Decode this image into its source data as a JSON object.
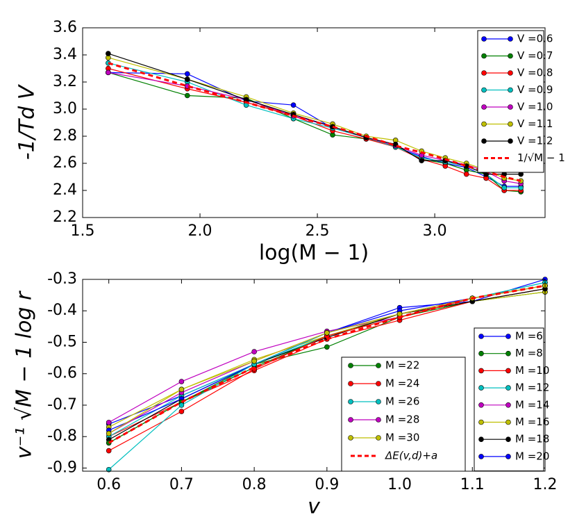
{
  "chart_data": [
    {
      "type": "line",
      "xlabel": "log(M − 1)",
      "ylabel": "-1/Td V",
      "x": [
        1.609,
        1.946,
        2.197,
        2.398,
        2.565,
        2.708,
        2.833,
        2.944,
        3.045,
        3.135,
        3.219,
        3.296,
        3.367
      ],
      "xlim": [
        1.5,
        3.47
      ],
      "ylim": [
        2.2,
        3.6
      ],
      "xticks": [
        1.5,
        {
          "value": 2,
          "label": "2.0"
        },
        2.5,
        {
          "value": 3,
          "label": "3.0"
        }
      ],
      "yticks": [
        2.2,
        2.4,
        2.6,
        2.8,
        {
          "value": 3,
          "label": "3.0"
        },
        3.2,
        3.4,
        3.6
      ],
      "legend": "upper right",
      "series": [
        {
          "name": "V =0.6",
          "color": "#0000ff",
          "marker": true,
          "values": [
            3.27,
            3.26,
            3.06,
            3.03,
            2.86,
            2.79,
            2.72,
            2.65,
            2.6,
            2.57,
            2.5,
            2.43,
            2.43
          ]
        },
        {
          "name": "V =0.7",
          "color": "#008000",
          "marker": true,
          "values": [
            3.27,
            3.1,
            3.08,
            2.93,
            2.81,
            2.78,
            2.73,
            2.63,
            2.6,
            2.55,
            2.52,
            2.4,
            2.39
          ]
        },
        {
          "name": "V =0.8",
          "color": "#ff0000",
          "marker": true,
          "values": [
            3.3,
            3.15,
            3.05,
            2.95,
            2.84,
            2.78,
            2.72,
            2.63,
            2.58,
            2.52,
            2.49,
            2.4,
            2.4
          ]
        },
        {
          "name": "V =0.9",
          "color": "#00bfbf",
          "marker": true,
          "values": [
            3.34,
            3.2,
            3.03,
            2.93,
            2.86,
            2.79,
            2.72,
            2.64,
            2.61,
            2.58,
            2.52,
            2.42,
            2.42
          ]
        },
        {
          "name": "V =1.0",
          "color": "#bf00bf",
          "marker": true,
          "values": [
            3.27,
            3.17,
            3.07,
            2.95,
            2.87,
            2.79,
            2.73,
            2.66,
            2.62,
            2.59,
            2.54,
            2.47,
            2.45
          ]
        },
        {
          "name": "V =1.1",
          "color": "#bfbf00",
          "marker": true,
          "values": [
            3.38,
            3.22,
            3.09,
            2.97,
            2.89,
            2.8,
            2.77,
            2.69,
            2.64,
            2.6,
            2.55,
            2.49,
            2.47
          ]
        },
        {
          "name": "V =1.2",
          "color": "#000000",
          "marker": true,
          "values": [
            3.41,
            3.22,
            3.07,
            2.96,
            2.87,
            2.79,
            2.74,
            2.62,
            2.62,
            2.58,
            2.52,
            2.52,
            2.52
          ]
        },
        {
          "name": "1/√M − 1",
          "color": "#ff0000",
          "dashed": true,
          "values": [
            3.34,
            3.17,
            3.05,
            2.95,
            2.87,
            2.8,
            2.73,
            2.68,
            2.63,
            2.58,
            2.54,
            2.5,
            2.47
          ]
        }
      ]
    },
    {
      "type": "line",
      "xlabel": "v",
      "ylabel": "v⁻¹ √M − 1 log r",
      "x": [
        0.6,
        0.7,
        0.8,
        0.9,
        1.0,
        1.1,
        1.2
      ],
      "xlim": [
        0.564,
        1.2
      ],
      "ylim": [
        -0.91,
        -0.3
      ],
      "xticks": [
        0.6,
        0.7,
        0.8,
        0.9,
        {
          "value": 1,
          "label": "1.0"
        },
        1.1,
        1.2
      ],
      "yticks": [
        -0.9,
        -0.8,
        -0.7,
        -0.6,
        -0.5,
        -0.4,
        -0.3
      ],
      "series": [
        {
          "name": "M =6",
          "color": "#0000ff",
          "marker": true,
          "legend": "lower right",
          "values": [
            -0.76,
            -0.67,
            -0.57,
            -0.47,
            -0.39,
            -0.37,
            -0.3
          ]
        },
        {
          "name": "M =8",
          "color": "#008000",
          "marker": true,
          "legend": "lower right",
          "values": [
            -0.82,
            -0.69,
            -0.57,
            -0.515,
            -0.42,
            -0.37,
            -0.34
          ]
        },
        {
          "name": "M =10",
          "color": "#ff0000",
          "marker": true,
          "legend": "lower right",
          "values": [
            -0.8,
            -0.69,
            -0.59,
            -0.49,
            -0.43,
            -0.37,
            -0.33
          ]
        },
        {
          "name": "M =12",
          "color": "#00bfbf",
          "marker": true,
          "legend": "lower right",
          "values": [
            -0.8,
            -0.67,
            -0.57,
            -0.48,
            -0.41,
            -0.36,
            -0.31
          ]
        },
        {
          "name": "M =14",
          "color": "#bf00bf",
          "marker": true,
          "legend": "lower right",
          "values": [
            -0.755,
            -0.625,
            -0.53,
            -0.465,
            -0.42,
            -0.36,
            -0.32
          ]
        },
        {
          "name": "M =16",
          "color": "#bfbf00",
          "marker": true,
          "legend": "lower right",
          "values": [
            -0.77,
            -0.65,
            -0.555,
            -0.48,
            -0.41,
            -0.37,
            -0.34
          ]
        },
        {
          "name": "M =18",
          "color": "#000000",
          "marker": true,
          "legend": "lower right",
          "values": [
            -0.81,
            -0.68,
            -0.57,
            -0.485,
            -0.41,
            -0.37,
            -0.33
          ]
        },
        {
          "name": "M =20",
          "color": "#0000ff",
          "marker": true,
          "legend": "lower right",
          "values": [
            -0.78,
            -0.68,
            -0.57,
            -0.47,
            -0.4,
            -0.36,
            -0.32
          ]
        },
        {
          "name": "M =22",
          "color": "#008000",
          "marker": true,
          "legend": "lower center",
          "values": [
            -0.82,
            -0.69,
            -0.58,
            -0.48,
            -0.42,
            -0.36,
            -0.32
          ]
        },
        {
          "name": "M =24",
          "color": "#ff0000",
          "marker": true,
          "legend": "lower center",
          "values": [
            -0.845,
            -0.72,
            -0.585,
            -0.48,
            -0.42,
            -0.36,
            -0.32
          ]
        },
        {
          "name": "M =26",
          "color": "#00bfbf",
          "marker": true,
          "legend": "lower center",
          "values": [
            -0.905,
            -0.7,
            -0.57,
            -0.47,
            -0.41,
            -0.36,
            -0.31
          ]
        },
        {
          "name": "M =28",
          "color": "#bf00bf",
          "marker": true,
          "legend": "lower center",
          "values": [
            -0.79,
            -0.66,
            -0.56,
            -0.47,
            -0.41,
            -0.36,
            -0.32
          ]
        },
        {
          "name": "M =30",
          "color": "#bfbf00",
          "marker": true,
          "legend": "lower center",
          "values": [
            -0.79,
            -0.65,
            -0.56,
            -0.47,
            -0.41,
            -0.36,
            -0.32
          ]
        },
        {
          "name": "ΔE(v,d)+a",
          "color": "#ff0000",
          "dashed": true,
          "legend": "lower center",
          "values": [
            -0.82,
            -0.69,
            -0.58,
            -0.49,
            -0.42,
            -0.36,
            -0.32
          ]
        }
      ]
    }
  ]
}
